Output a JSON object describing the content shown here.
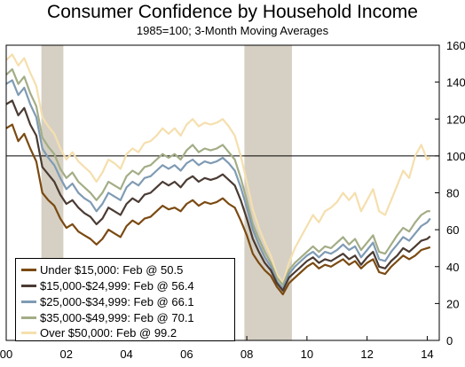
{
  "title": "Consumer Confidence by Household Income",
  "subtitle": "1985=100; 3-Month Moving Averages",
  "chart_data": {
    "type": "line",
    "x_ticks": [
      "00",
      "02",
      "04",
      "06",
      "08",
      "10",
      "12",
      "14"
    ],
    "x_tick_values": [
      2000,
      2002,
      2004,
      2006,
      2008,
      2010,
      2012,
      2014
    ],
    "xlim": [
      2000,
      2014.4
    ],
    "y_ticks": [
      "0",
      "20",
      "40",
      "60",
      "80",
      "100",
      "120",
      "140",
      "160"
    ],
    "ylim": [
      0,
      160
    ],
    "reference_line": 100,
    "recession_shading": [
      [
        2001.17,
        2001.9
      ],
      [
        2007.92,
        2009.5
      ]
    ],
    "legend": "bottom-left",
    "series": [
      {
        "name": "Under $15,000: Feb @ 50.5",
        "color": "#7b4a12",
        "x": [
          2000.0,
          2000.2,
          2000.4,
          2000.6,
          2000.8,
          2001.0,
          2001.2,
          2001.4,
          2001.6,
          2001.8,
          2002.0,
          2002.2,
          2002.4,
          2002.6,
          2002.8,
          2003.0,
          2003.2,
          2003.4,
          2003.6,
          2003.8,
          2004.0,
          2004.2,
          2004.4,
          2004.6,
          2004.8,
          2005.0,
          2005.2,
          2005.4,
          2005.6,
          2005.8,
          2006.0,
          2006.2,
          2006.4,
          2006.6,
          2006.8,
          2007.0,
          2007.2,
          2007.4,
          2007.6,
          2007.8,
          2008.0,
          2008.2,
          2008.4,
          2008.6,
          2008.8,
          2009.0,
          2009.2,
          2009.4,
          2009.6,
          2009.8,
          2010.0,
          2010.2,
          2010.4,
          2010.6,
          2010.8,
          2011.0,
          2011.2,
          2011.4,
          2011.6,
          2011.8,
          2012.0,
          2012.2,
          2012.4,
          2012.6,
          2012.8,
          2013.0,
          2013.2,
          2013.4,
          2013.6,
          2013.8,
          2014.0,
          2014.1
        ],
        "values": [
          115,
          117,
          108,
          112,
          104,
          97,
          80,
          76,
          73,
          66,
          61,
          63,
          59,
          57,
          55,
          52,
          55,
          60,
          58,
          56,
          62,
          65,
          63,
          66,
          67,
          70,
          73,
          71,
          72,
          70,
          74,
          76,
          73,
          75,
          74,
          75,
          77,
          74,
          72,
          65,
          57,
          47,
          42,
          38,
          35,
          29,
          25,
          31,
          34,
          37,
          40,
          42,
          39,
          41,
          40,
          42,
          44,
          41,
          43,
          39,
          42,
          44,
          37,
          36,
          40,
          43,
          46,
          44,
          46,
          49,
          50,
          50.5
        ]
      },
      {
        "name": "$15,000-$24,999: Feb @ 56.4",
        "color": "#4a3b33",
        "x": [
          2000.0,
          2000.2,
          2000.4,
          2000.6,
          2000.8,
          2001.0,
          2001.2,
          2001.4,
          2001.6,
          2001.8,
          2002.0,
          2002.2,
          2002.4,
          2002.6,
          2002.8,
          2003.0,
          2003.2,
          2003.4,
          2003.6,
          2003.8,
          2004.0,
          2004.2,
          2004.4,
          2004.6,
          2004.8,
          2005.0,
          2005.2,
          2005.4,
          2005.6,
          2005.8,
          2006.0,
          2006.2,
          2006.4,
          2006.6,
          2006.8,
          2007.0,
          2007.2,
          2007.4,
          2007.6,
          2007.8,
          2008.0,
          2008.2,
          2008.4,
          2008.6,
          2008.8,
          2009.0,
          2009.2,
          2009.4,
          2009.6,
          2009.8,
          2010.0,
          2010.2,
          2010.4,
          2010.6,
          2010.8,
          2011.0,
          2011.2,
          2011.4,
          2011.6,
          2011.8,
          2012.0,
          2012.2,
          2012.4,
          2012.6,
          2012.8,
          2013.0,
          2013.2,
          2013.4,
          2013.6,
          2013.8,
          2014.0,
          2014.1
        ],
        "values": [
          128,
          130,
          122,
          126,
          117,
          111,
          94,
          90,
          86,
          79,
          74,
          76,
          72,
          69,
          67,
          63,
          66,
          72,
          70,
          68,
          74,
          77,
          75,
          79,
          80,
          83,
          86,
          84,
          86,
          83,
          87,
          89,
          86,
          88,
          87,
          88,
          90,
          87,
          84,
          76,
          66,
          55,
          48,
          42,
          38,
          31,
          27,
          34,
          37,
          40,
          43,
          45,
          42,
          44,
          43,
          45,
          47,
          44,
          46,
          41,
          45,
          48,
          40,
          39,
          43,
          46,
          50,
          48,
          51,
          54,
          55,
          56.4
        ]
      },
      {
        "name": "$25,000-$34,999: Feb @ 66.1",
        "color": "#7f9bb4",
        "x": [
          2000.0,
          2000.2,
          2000.4,
          2000.6,
          2000.8,
          2001.0,
          2001.2,
          2001.4,
          2001.6,
          2001.8,
          2002.0,
          2002.2,
          2002.4,
          2002.6,
          2002.8,
          2003.0,
          2003.2,
          2003.4,
          2003.6,
          2003.8,
          2004.0,
          2004.2,
          2004.4,
          2004.6,
          2004.8,
          2005.0,
          2005.2,
          2005.4,
          2005.6,
          2005.8,
          2006.0,
          2006.2,
          2006.4,
          2006.6,
          2006.8,
          2007.0,
          2007.2,
          2007.4,
          2007.6,
          2007.8,
          2008.0,
          2008.2,
          2008.4,
          2008.6,
          2008.8,
          2009.0,
          2009.2,
          2009.4,
          2009.6,
          2009.8,
          2010.0,
          2010.2,
          2010.4,
          2010.6,
          2010.8,
          2011.0,
          2011.2,
          2011.4,
          2011.6,
          2011.8,
          2012.0,
          2012.2,
          2012.4,
          2012.6,
          2012.8,
          2013.0,
          2013.2,
          2013.4,
          2013.6,
          2013.8,
          2014.0,
          2014.1
        ],
        "values": [
          139,
          141,
          133,
          137,
          128,
          121,
          104,
          99,
          95,
          88,
          82,
          85,
          80,
          77,
          75,
          70,
          74,
          80,
          78,
          76,
          83,
          86,
          84,
          88,
          89,
          92,
          95,
          93,
          95,
          92,
          96,
          98,
          95,
          97,
          96,
          97,
          99,
          96,
          92,
          83,
          72,
          60,
          52,
          45,
          40,
          32,
          28,
          36,
          40,
          43,
          46,
          48,
          45,
          48,
          47,
          49,
          52,
          49,
          51,
          45,
          49,
          53,
          44,
          43,
          48,
          52,
          56,
          54,
          58,
          62,
          64,
          66.1
        ]
      },
      {
        "name": "$35,000-$49,999: Feb @ 70.1",
        "color": "#a3ad86",
        "x": [
          2000.0,
          2000.2,
          2000.4,
          2000.6,
          2000.8,
          2001.0,
          2001.2,
          2001.4,
          2001.6,
          2001.8,
          2002.0,
          2002.2,
          2002.4,
          2002.6,
          2002.8,
          2003.0,
          2003.2,
          2003.4,
          2003.6,
          2003.8,
          2004.0,
          2004.2,
          2004.4,
          2004.6,
          2004.8,
          2005.0,
          2005.2,
          2005.4,
          2005.6,
          2005.8,
          2006.0,
          2006.2,
          2006.4,
          2006.6,
          2006.8,
          2007.0,
          2007.2,
          2007.4,
          2007.6,
          2007.8,
          2008.0,
          2008.2,
          2008.4,
          2008.6,
          2008.8,
          2009.0,
          2009.2,
          2009.4,
          2009.6,
          2009.8,
          2010.0,
          2010.2,
          2010.4,
          2010.6,
          2010.8,
          2011.0,
          2011.2,
          2011.4,
          2011.6,
          2011.8,
          2012.0,
          2012.2,
          2012.4,
          2012.6,
          2012.8,
          2013.0,
          2013.2,
          2013.4,
          2013.6,
          2013.8,
          2014.0,
          2014.1
        ],
        "values": [
          144,
          147,
          139,
          143,
          134,
          127,
          110,
          105,
          101,
          93,
          88,
          91,
          86,
          83,
          80,
          76,
          80,
          86,
          84,
          82,
          89,
          92,
          90,
          94,
          95,
          98,
          101,
          99,
          101,
          98,
          103,
          106,
          102,
          104,
          103,
          104,
          106,
          102,
          98,
          88,
          76,
          63,
          55,
          48,
          42,
          34,
          30,
          38,
          42,
          45,
          48,
          51,
          48,
          51,
          50,
          53,
          56,
          52,
          55,
          49,
          53,
          57,
          48,
          47,
          52,
          57,
          61,
          59,
          64,
          68,
          70,
          70.1
        ]
      },
      {
        "name": "Over $50,000: Feb @ 99.2",
        "color": "#f5dfae",
        "x": [
          2000.0,
          2000.2,
          2000.4,
          2000.6,
          2000.8,
          2001.0,
          2001.2,
          2001.4,
          2001.6,
          2001.8,
          2002.0,
          2002.2,
          2002.4,
          2002.6,
          2002.8,
          2003.0,
          2003.2,
          2003.4,
          2003.6,
          2003.8,
          2004.0,
          2004.2,
          2004.4,
          2004.6,
          2004.8,
          2005.0,
          2005.2,
          2005.4,
          2005.6,
          2005.8,
          2006.0,
          2006.2,
          2006.4,
          2006.6,
          2006.8,
          2007.0,
          2007.2,
          2007.4,
          2007.6,
          2007.8,
          2008.0,
          2008.2,
          2008.4,
          2008.6,
          2008.8,
          2009.0,
          2009.2,
          2009.4,
          2009.6,
          2009.8,
          2010.0,
          2010.2,
          2010.4,
          2010.6,
          2010.8,
          2011.0,
          2011.2,
          2011.4,
          2011.6,
          2011.8,
          2012.0,
          2012.2,
          2012.4,
          2012.6,
          2012.8,
          2013.0,
          2013.2,
          2013.4,
          2013.6,
          2013.8,
          2014.0,
          2014.1
        ],
        "values": [
          152,
          155,
          149,
          153,
          145,
          138,
          121,
          116,
          112,
          104,
          98,
          102,
          97,
          94,
          91,
          86,
          91,
          98,
          96,
          93,
          101,
          104,
          102,
          107,
          108,
          111,
          115,
          112,
          115,
          111,
          117,
          120,
          116,
          118,
          117,
          118,
          120,
          116,
          111,
          100,
          86,
          71,
          61,
          53,
          46,
          36,
          31,
          42,
          50,
          56,
          62,
          68,
          64,
          70,
          72,
          75,
          80,
          76,
          80,
          70,
          76,
          82,
          70,
          68,
          76,
          84,
          92,
          88,
          100,
          106,
          98,
          99.2
        ]
      }
    ]
  }
}
